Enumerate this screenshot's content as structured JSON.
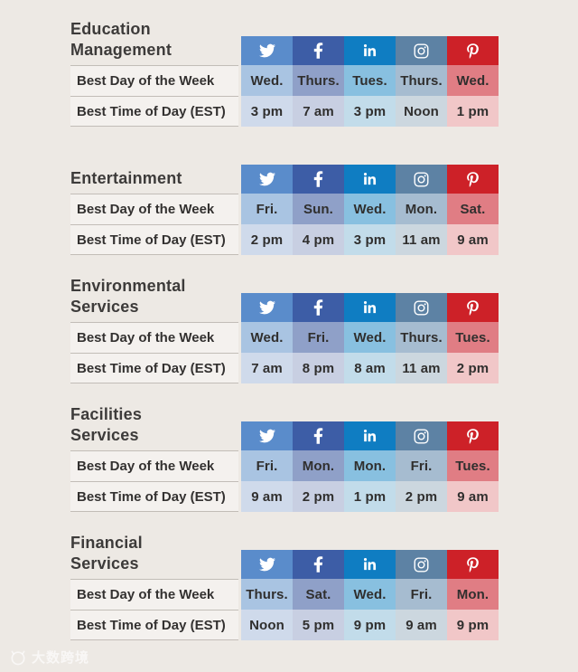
{
  "page": {
    "background": "#EDE9E4",
    "watermark_text": "大数跨境"
  },
  "platforms": [
    {
      "name": "Twitter",
      "icon": "twitter-icon",
      "header_color": "#5A8CCB",
      "day_color": "#A9C4E2",
      "time_color": "#CFDAEB"
    },
    {
      "name": "Facebook",
      "icon": "facebook-icon",
      "header_color": "#3D5DA6",
      "day_color": "#8FA0C8",
      "time_color": "#C8CFE2"
    },
    {
      "name": "LinkedIn",
      "icon": "linkedin-icon",
      "header_color": "#0F7DC2",
      "day_color": "#88C0E0",
      "time_color": "#C2DCEA"
    },
    {
      "name": "Instagram",
      "icon": "instagram-icon",
      "header_color": "#5D82A4",
      "day_color": "#A6BCD0",
      "time_color": "#CCD7DF"
    },
    {
      "name": "Pinterest",
      "icon": "pinterest-icon",
      "header_color": "#CD2128",
      "day_color": "#E07D84",
      "time_color": "#F1C7C8"
    }
  ],
  "chart_data": [
    {
      "type": "table",
      "title_lines": [
        "Education",
        "Management"
      ],
      "columns": [
        "Twitter",
        "Facebook",
        "LinkedIn",
        "Instagram",
        "Pinterest"
      ],
      "rows": [
        {
          "label": "Best Day of the Week",
          "values": [
            "Wed.",
            "Thurs.",
            "Tues.",
            "Thurs.",
            "Wed."
          ]
        },
        {
          "label": "Best Time of Day (EST)",
          "values": [
            "3 pm",
            "7 am",
            "3 pm",
            "Noon",
            "1 pm"
          ]
        }
      ]
    },
    {
      "type": "table",
      "title_lines": [
        "Entertainment"
      ],
      "columns": [
        "Twitter",
        "Facebook",
        "LinkedIn",
        "Instagram",
        "Pinterest"
      ],
      "rows": [
        {
          "label": "Best Day of the Week",
          "values": [
            "Fri.",
            "Sun.",
            "Wed.",
            "Mon.",
            "Sat."
          ]
        },
        {
          "label": "Best Time of Day (EST)",
          "values": [
            "2 pm",
            "4 pm",
            "3 pm",
            "11 am",
            "9 am"
          ]
        }
      ]
    },
    {
      "type": "table",
      "title_lines": [
        "Environmental",
        "Services"
      ],
      "columns": [
        "Twitter",
        "Facebook",
        "LinkedIn",
        "Instagram",
        "Pinterest"
      ],
      "rows": [
        {
          "label": "Best Day of the Week",
          "values": [
            "Wed.",
            "Fri.",
            "Wed.",
            "Thurs.",
            "Tues."
          ]
        },
        {
          "label": "Best Time of Day (EST)",
          "values": [
            "7 am",
            "8 pm",
            "8 am",
            "11 am",
            "2 pm"
          ]
        }
      ]
    },
    {
      "type": "table",
      "title_lines": [
        "Facilities",
        "Services"
      ],
      "columns": [
        "Twitter",
        "Facebook",
        "LinkedIn",
        "Instagram",
        "Pinterest"
      ],
      "rows": [
        {
          "label": "Best Day of the Week",
          "values": [
            "Fri.",
            "Mon.",
            "Mon.",
            "Fri.",
            "Tues."
          ]
        },
        {
          "label": "Best Time of Day (EST)",
          "values": [
            "9 am",
            "2 pm",
            "1 pm",
            "2 pm",
            "9 am"
          ]
        }
      ]
    },
    {
      "type": "table",
      "title_lines": [
        "Financial",
        "Services"
      ],
      "columns": [
        "Twitter",
        "Facebook",
        "LinkedIn",
        "Instagram",
        "Pinterest"
      ],
      "rows": [
        {
          "label": "Best Day of the Week",
          "values": [
            "Thurs.",
            "Sat.",
            "Wed.",
            "Fri.",
            "Mon."
          ]
        },
        {
          "label": "Best Time of Day (EST)",
          "values": [
            "Noon",
            "5 pm",
            "9 pm",
            "9 am",
            "9 pm"
          ]
        }
      ]
    }
  ]
}
